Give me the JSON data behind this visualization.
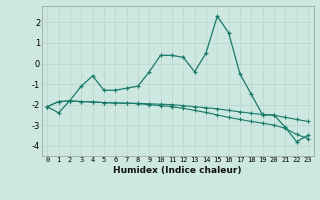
{
  "xlabel": "Humidex (Indice chaleur)",
  "x": [
    0,
    1,
    2,
    3,
    4,
    5,
    6,
    7,
    8,
    9,
    10,
    11,
    12,
    13,
    14,
    15,
    16,
    17,
    18,
    19,
    20,
    21,
    22,
    23
  ],
  "line1": [
    -2.1,
    -2.4,
    -1.8,
    -1.1,
    -0.6,
    -1.3,
    -1.3,
    -1.2,
    -1.1,
    -0.4,
    0.4,
    0.4,
    0.3,
    -0.4,
    0.5,
    2.3,
    1.5,
    -0.5,
    -1.5,
    -2.5,
    -2.5,
    -3.1,
    -3.8,
    -3.5
  ],
  "line2": [
    -2.1,
    -1.85,
    -1.82,
    -1.85,
    -1.87,
    -1.9,
    -1.92,
    -1.93,
    -1.94,
    -1.96,
    -1.98,
    -2.0,
    -2.05,
    -2.1,
    -2.15,
    -2.2,
    -2.28,
    -2.35,
    -2.42,
    -2.48,
    -2.52,
    -2.62,
    -2.72,
    -2.82
  ],
  "line3": [
    -2.1,
    -1.85,
    -1.82,
    -1.85,
    -1.87,
    -1.9,
    -1.92,
    -1.93,
    -1.95,
    -2.0,
    -2.05,
    -2.1,
    -2.18,
    -2.28,
    -2.38,
    -2.5,
    -2.62,
    -2.72,
    -2.82,
    -2.9,
    -3.0,
    -3.15,
    -3.45,
    -3.65
  ],
  "line_color": "#1a7a6a",
  "bg_color": "#cce8e0",
  "grid_color": "#b8d4cc",
  "ylim": [
    -4.5,
    2.8
  ],
  "yticks": [
    -4,
    -3,
    -2,
    -1,
    0,
    1,
    2
  ],
  "xlim": [
    -0.5,
    23.5
  ]
}
